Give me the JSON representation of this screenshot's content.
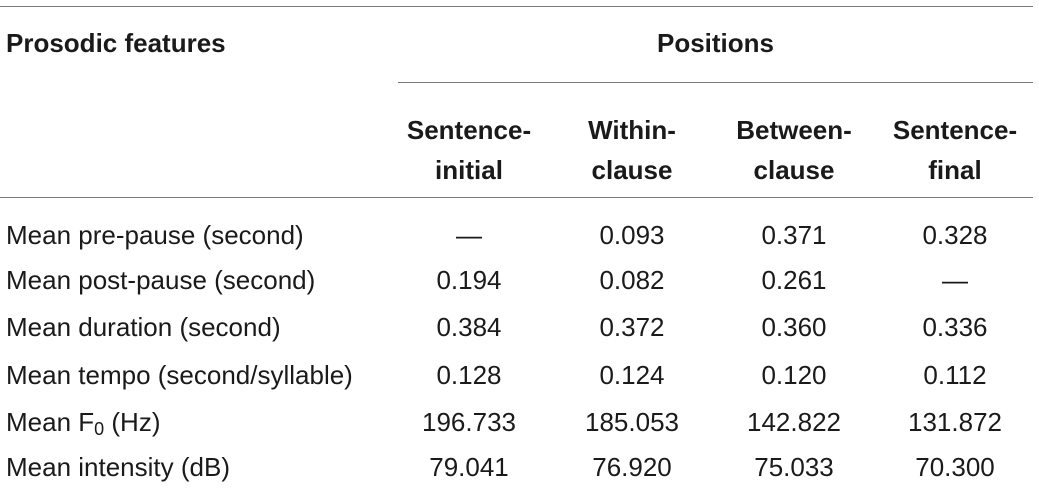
{
  "table": {
    "header_row_label": "Prosodic features",
    "group_header": "Positions",
    "columns": [
      {
        "line1": "Sentence-",
        "line2": "initial"
      },
      {
        "line1": "Within-",
        "line2": "clause"
      },
      {
        "line1": "Between-",
        "line2": "clause"
      },
      {
        "line1": "Sentence-",
        "line2": "final"
      }
    ],
    "rows": [
      {
        "label": "Mean pre-pause (second)",
        "values": [
          "—",
          "0.093",
          "0.371",
          "0.328"
        ]
      },
      {
        "label": "Mean post-pause (second)",
        "values": [
          "0.194",
          "0.082",
          "0.261",
          "—"
        ]
      },
      {
        "label": "Mean duration (second)",
        "values": [
          "0.384",
          "0.372",
          "0.360",
          "0.336"
        ]
      },
      {
        "label": "Mean tempo (second/syllable)",
        "values": [
          "0.128",
          "0.124",
          "0.120",
          "0.112"
        ]
      },
      {
        "label_prefix": "Mean F",
        "label_sub": "0",
        "label_suffix": " (Hz)",
        "values": [
          "196.733",
          "185.053",
          "142.822",
          "131.872"
        ]
      },
      {
        "label": "Mean intensity (dB)",
        "values": [
          "79.041",
          "76.920",
          "75.033",
          "70.300"
        ]
      }
    ]
  }
}
